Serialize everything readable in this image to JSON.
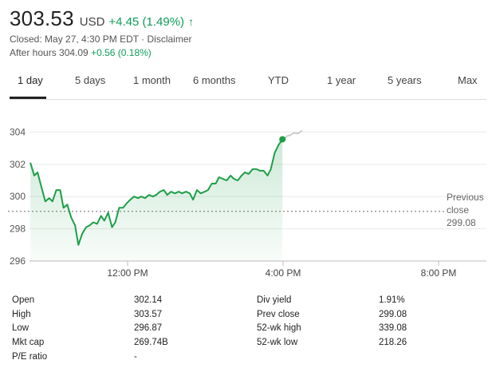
{
  "quote": {
    "price": "303.53",
    "currency": "USD",
    "change": "+4.45 (1.49%)",
    "closed_info": "Closed: May 27, 4:30 PM EDT · Disclaimer",
    "after_hours_label": "After hours 304.09",
    "after_hours_change": "+0.56 (0.18%)"
  },
  "colors": {
    "positive": "#0f9d58",
    "line": "#1e9e48",
    "after_hours_line": "#c8c8c8",
    "grid": "#e8e8e8"
  },
  "tabs": [
    "1 day",
    "5 days",
    "1 month",
    "6 months",
    "YTD",
    "1 year",
    "5 years",
    "Max"
  ],
  "active_tab": "1 day",
  "chart_data": {
    "type": "area",
    "x_ticks": [
      "12:00 PM",
      "4:00 PM",
      "8:00 PM"
    ],
    "y_ticks": [
      296,
      298,
      300,
      302,
      304
    ],
    "ylim": [
      296,
      304.8
    ],
    "previous_close": {
      "label_line1": "Previous",
      "label_line2": "close",
      "value": 299.08
    },
    "series": [
      {
        "x": [
          "9:30",
          "9:36",
          "9:41",
          "9:47",
          "9:53",
          "9:59",
          "10:04",
          "10:10",
          "10:16",
          "10:21",
          "10:27",
          "10:33",
          "10:39",
          "10:44",
          "10:50",
          "10:56",
          "11:01",
          "11:07",
          "11:13",
          "11:19",
          "11:24",
          "11:30",
          "11:36",
          "11:41",
          "11:47",
          "11:53",
          "11:59",
          "12:04",
          "12:10",
          "12:16",
          "12:21",
          "12:27",
          "12:33",
          "12:39",
          "12:44",
          "12:50",
          "12:56",
          "1:01",
          "1:07",
          "1:13",
          "1:19",
          "1:24",
          "1:30",
          "1:36",
          "1:41",
          "1:47",
          "1:53",
          "1:59",
          "2:04",
          "2:10",
          "2:16",
          "2:21",
          "2:27",
          "2:33",
          "2:39",
          "2:44",
          "2:50",
          "2:56",
          "3:01",
          "3:07",
          "3:13",
          "3:19",
          "3:24",
          "3:30",
          "3:36",
          "3:41",
          "3:47",
          "3:53",
          "3:59"
        ],
        "y": [
          302.1,
          301.3,
          301.5,
          300.6,
          299.7,
          299.9,
          299.7,
          300.4,
          300.4,
          299.3,
          299.5,
          298.7,
          298.2,
          297.0,
          297.7,
          298.1,
          298.2,
          298.4,
          298.3,
          298.8,
          298.5,
          299.0,
          298.1,
          298.4,
          299.3,
          299.3,
          299.6,
          299.8,
          300.0,
          299.9,
          300.0,
          299.9,
          300.1,
          300.0,
          300.1,
          300.3,
          300.4,
          300.1,
          300.3,
          300.2,
          300.3,
          300.2,
          300.3,
          300.2,
          299.8,
          300.4,
          300.2,
          300.3,
          300.4,
          300.8,
          300.8,
          301.2,
          301.1,
          301.0,
          301.3,
          301.1,
          301.0,
          301.3,
          301.5,
          301.4,
          301.7,
          301.7,
          301.6,
          301.6,
          301.3,
          301.7,
          302.7,
          303.2,
          303.55
        ]
      },
      {
        "x": [
          "4:00",
          "4:06",
          "4:11",
          "4:17",
          "4:23",
          "4:29"
        ],
        "y": [
          303.55,
          303.75,
          303.8,
          303.95,
          303.9,
          304.1
        ]
      }
    ]
  },
  "stats": [
    [
      "Open",
      "302.14",
      "Div yield",
      "1.91%"
    ],
    [
      "High",
      "303.57",
      "Prev close",
      "299.08"
    ],
    [
      "Low",
      "296.87",
      "52-wk high",
      "339.08"
    ],
    [
      "Mkt cap",
      "269.74B",
      "52-wk low",
      "218.26"
    ],
    [
      "P/E ratio",
      "-",
      "",
      ""
    ]
  ]
}
